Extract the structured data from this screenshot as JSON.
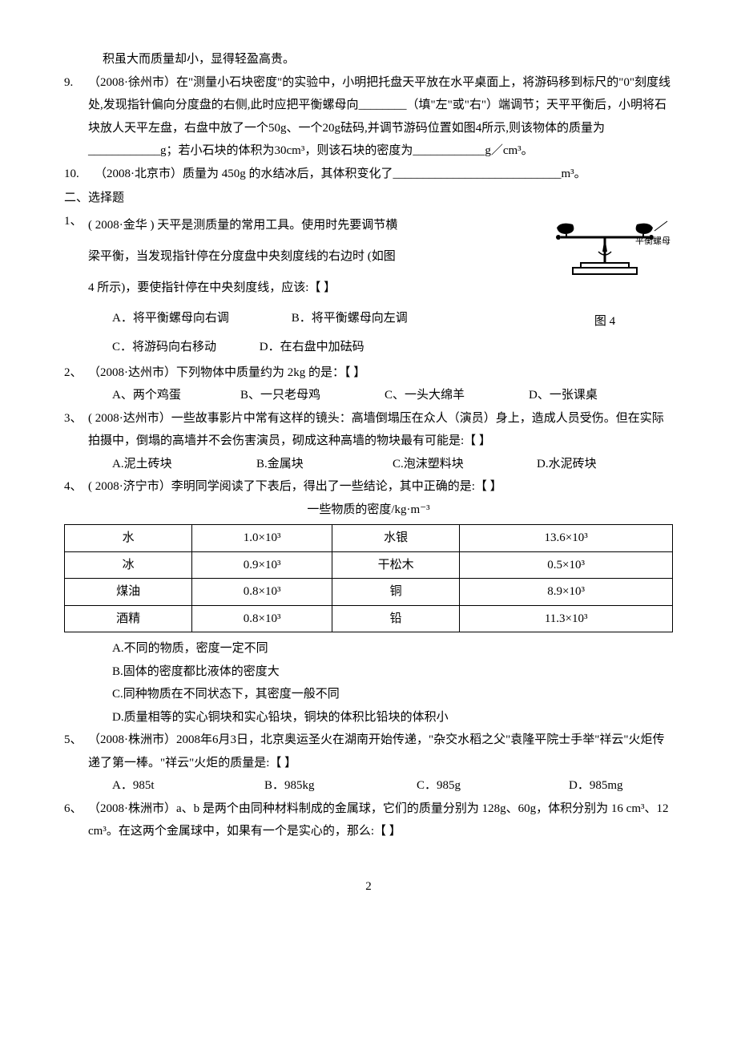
{
  "cont_line": "积虽大而质量却小，显得轻盈高贵。",
  "q9": {
    "num": "9.",
    "text": "（2008·徐州市）在\"测量小石块密度\"的实验中，小明把托盘天平放在水平桌面上，将游码移到标尺的\"0\"刻度线处,发现指针偏向分度盘的右侧,此时应把平衡螺母向________（填\"左\"或\"右\"）端调节；天平平衡后，小明将石块放人天平左盘，右盘中放了一个50g、一个20g砝码,并调节游码位置如图4所示,则该物体的质量为____________g；若小石块的体积为30cm³，则该石块的密度为____________g／cm³。"
  },
  "q10": {
    "num": "10.",
    "text": "（2008·北京市）质量为 450g 的水结冰后，其体积变化了____________________________m³。"
  },
  "section2": "二、选择题",
  "fig4_label": "图 4",
  "balance_label": "平衡螺母",
  "q1": {
    "num": "1、",
    "line1": "( 2008·金华 ) 天平是测质量的常用工具。使用时先要调节横",
    "line2": "梁平衡，当发现指针停在分度盘中央刻度线的右边时 (如图",
    "line3": "4 所示)，要使指针停在中央刻度线，应该:【  】",
    "optA": "A．将平衡螺母向右调",
    "optB": "B．将平衡螺母向左调",
    "optC": "C．将游码向右移动",
    "optD": "D．在右盘中加砝码"
  },
  "q2": {
    "num": "2、",
    "text": "（2008·达州市）下列物体中质量约为 2kg 的是：【  】",
    "optA": "A、两个鸡蛋",
    "optB": "B、一只老母鸡",
    "optC": "C、一头大绵羊",
    "optD": "D、一张课桌"
  },
  "q3": {
    "num": "3、",
    "text": "( 2008·达州市）一些故事影片中常有这样的镜头：高墙倒塌压在众人（演员）身上，造成人员受伤。但在实际拍摄中，倒塌的高墙并不会伤害演员，砌成这种高墙的物块最有可能是:【  】",
    "optA": "A.泥土砖块",
    "optB": "B.金属块",
    "optC": "C.泡沫塑料块",
    "optD": "D.水泥砖块"
  },
  "q4": {
    "num": "4、",
    "text": "( 2008·济宁市）李明同学阅读了下表后，得出了一些结论，其中正确的是:【  】",
    "caption": "一些物质的密度/kg·m⁻³",
    "table": {
      "rows": [
        [
          "水",
          "1.0×10³",
          "水银",
          "13.6×10³"
        ],
        [
          "冰",
          "0.9×10³",
          "干松木",
          "0.5×10³"
        ],
        [
          "煤油",
          "0.8×10³",
          "铜",
          "8.9×10³"
        ],
        [
          "酒精",
          "0.8×10³",
          "铅",
          "11.3×10³"
        ]
      ],
      "col_widths": [
        "21%",
        "23%",
        "21%",
        "35%"
      ]
    },
    "optA": "A.不同的物质，密度一定不同",
    "optB": "B.固体的密度都比液体的密度大",
    "optC": "C.同种物质在不同状态下，其密度一般不同",
    "optD": "D.质量相等的实心铜块和实心铅块，铜块的体积比铅块的体积小"
  },
  "q5": {
    "num": "5、",
    "text": "（2008·株洲市）2008年6月3日，北京奥运圣火在湖南开始传递，\"杂交水稻之父\"袁隆平院士手举\"祥云\"火炬传递了第一棒。\"祥云\"火炬的质量是:【  】",
    "optA": "A．985t",
    "optB": "B．985kg",
    "optC": "C．985g",
    "optD": "D．985mg"
  },
  "q6": {
    "num": "6、",
    "text": "（2008·株洲市）a、b 是两个由同种材料制成的金属球，它们的质量分别为 128g、60g，体积分别为 16 cm³、12 cm³。在这两个金属球中，如果有一个是实心的，那么:【  】"
  },
  "page_num": "2"
}
